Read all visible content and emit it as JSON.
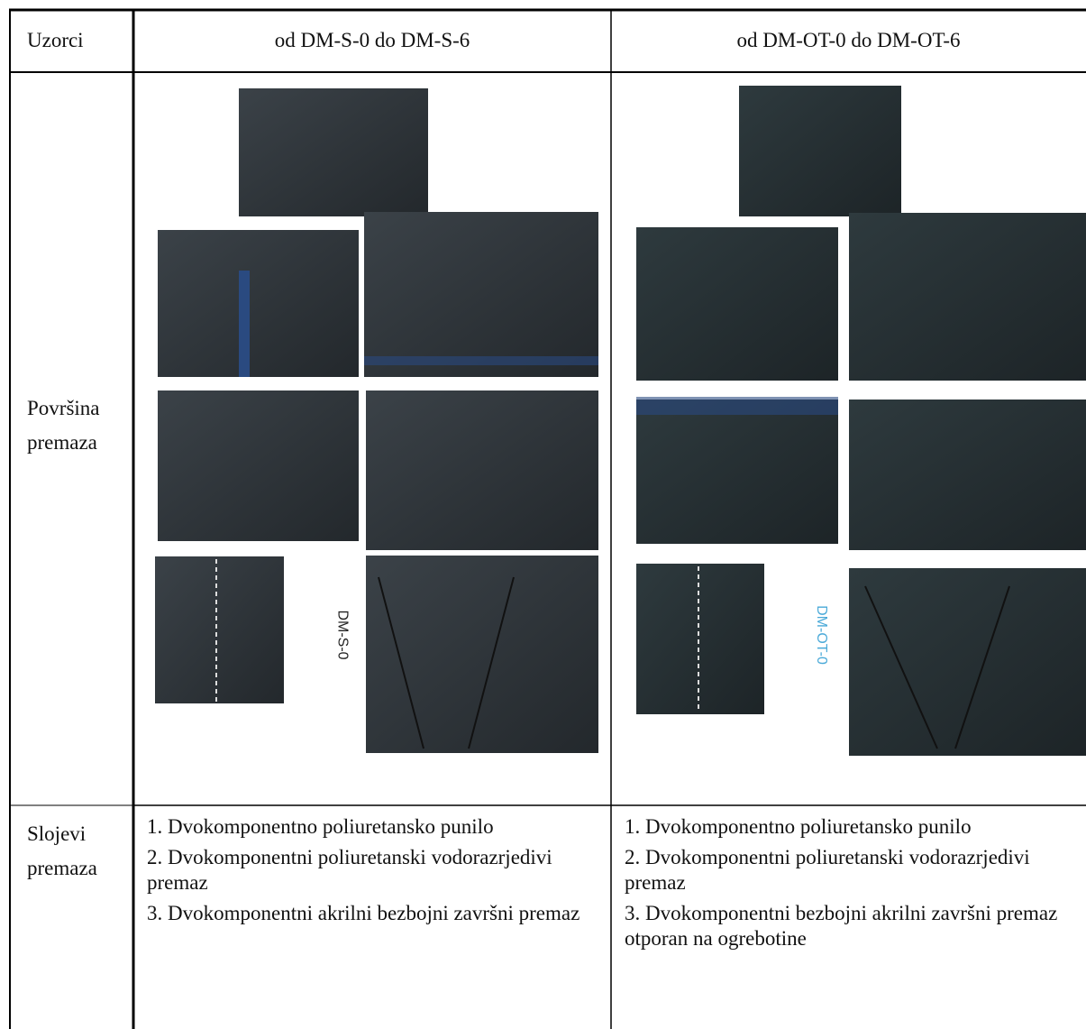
{
  "table": {
    "header": [
      "Uzorci",
      "od DM-S-0 do DM-S-6",
      "od DM-OT-0 do DM-OT-6"
    ],
    "surface_row": {
      "label": "Površina premaza",
      "photo_labels": [
        "DM-S-0",
        "DM-OT-0"
      ]
    },
    "layers_row": {
      "label": "Slojevi premaza",
      "columns": [
        [
          "1. Dvokomponentno poliuretansko punilo",
          "2. Dvokomponentni poliuretanski vodorazrjedivi premaz",
          "3. Dvokomponentni akrilni bezbojni završni premaz"
        ],
        [
          "1. Dvokomponentno poliuretansko punilo",
          "2. Dvokomponentni poliuretanski vodorazrjedivi premaz",
          "3. Dvokomponentni bezbojni akrilni završni premaz otporan na ogrebotine"
        ]
      ]
    }
  }
}
